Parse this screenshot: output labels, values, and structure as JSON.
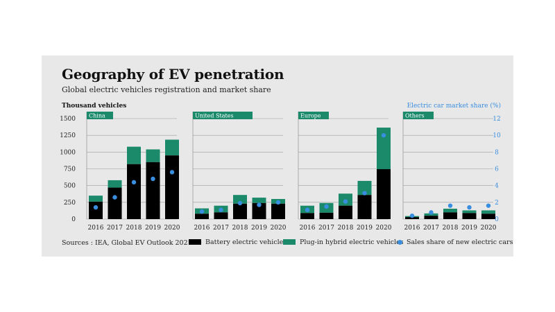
{
  "header": {
    "title": "Geography of EV penetration",
    "subtitle": "Global electric vehicles registration and market share"
  },
  "source": "Sources : IEA, Global EV Outlook 2021.",
  "legend": {
    "bev": "Battery electric vehicles",
    "phev": "Plug-in hybrid electric vehicles",
    "share": "Sales share of new electric cars"
  },
  "colors": {
    "bev": "#000000",
    "phev": "#1a8a6b",
    "share": "#3a8ee0",
    "grid": "#9a9a9a",
    "panel_tag": "#1a8a6b",
    "right_axis": "#3a8ee0"
  },
  "chart_data": {
    "type": "bar",
    "stacked": true,
    "categories": [
      "2016",
      "2017",
      "2018",
      "2019",
      "2020"
    ],
    "ylabel": "Thousand vehicles",
    "ylim": [
      0,
      1500
    ],
    "yticks": [
      0,
      250,
      500,
      750,
      1000,
      1250,
      1500
    ],
    "y2label": "Electric car market share (%)",
    "y2lim": [
      0,
      12
    ],
    "y2ticks": [
      0,
      2,
      4,
      6,
      8,
      10,
      12
    ],
    "grid": true,
    "panels": [
      {
        "name": "China",
        "bev": [
          260,
          470,
          820,
          850,
          950
        ],
        "phev": [
          90,
          110,
          260,
          190,
          235
        ],
        "share": [
          1.4,
          2.6,
          4.4,
          4.8,
          5.6
        ]
      },
      {
        "name": "United States",
        "bev": [
          80,
          100,
          230,
          240,
          230
        ],
        "phev": [
          80,
          100,
          130,
          80,
          70
        ],
        "share": [
          0.9,
          1.1,
          1.9,
          1.7,
          2.0
        ]
      },
      {
        "name": "Europe",
        "bev": [
          90,
          95,
          200,
          360,
          745
        ],
        "phev": [
          110,
          145,
          180,
          210,
          620
        ],
        "share": [
          1.1,
          1.5,
          2.1,
          3.1,
          10.0
        ]
      },
      {
        "name": "Others",
        "bev": [
          30,
          50,
          100,
          90,
          80
        ],
        "phev": [
          15,
          35,
          55,
          40,
          50
        ],
        "share": [
          0.4,
          0.8,
          1.6,
          1.4,
          1.6
        ]
      }
    ]
  }
}
